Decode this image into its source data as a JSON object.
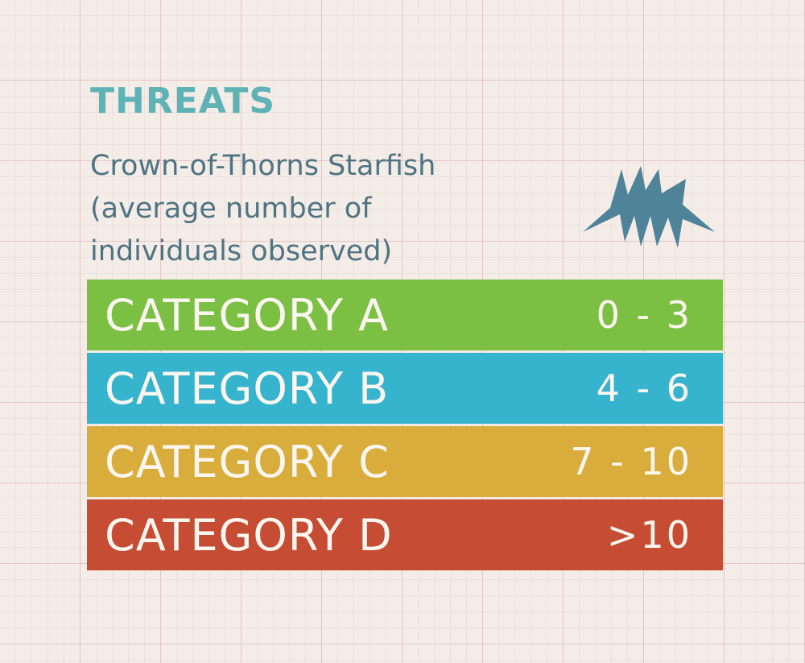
{
  "header": {
    "title": "THREATS",
    "subtitle_lines": [
      "Crown-of-Thorns Starfish",
      "(average number of",
      "individuals observed)"
    ]
  },
  "starfish_icon": {
    "name": "starfish-icon",
    "color": "#4e839a"
  },
  "categories": [
    {
      "label": "CATEGORY A",
      "range": "0 - 3",
      "color": "#7bc043"
    },
    {
      "label": "CATEGORY B",
      "range": "4 - 6",
      "color": "#36b3cd"
    },
    {
      "label": "CATEGORY C",
      "range": "7 - 10",
      "color": "#d9ad3c"
    },
    {
      "label": "CATEGORY D",
      "range": ">10",
      "color": "#c64c33"
    }
  ]
}
